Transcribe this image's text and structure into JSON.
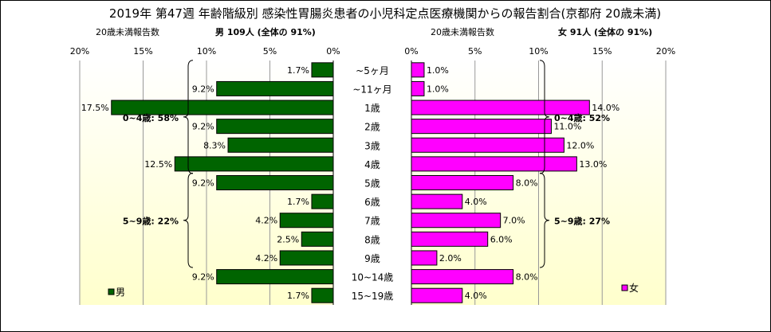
{
  "title": "2019年 第47週 年齢階級別 感染性胃腸炎患者の小児科定点医療機関からの報告割合(京都府 20歳未満)",
  "colors": {
    "male": "#006400",
    "female": "#ff00ff",
    "plot_bg_bottom": "#ffffcc"
  },
  "chart_data": [
    {
      "type": "bar",
      "orientation": "horizontal",
      "direction": "right-to-left",
      "caption": "20歳未満報告数",
      "header": "男 109人 (全体の 91%)",
      "categories": [
        "~5ヶ月",
        "~11ヶ月",
        "1歳",
        "2歳",
        "3歳",
        "4歳",
        "5歳",
        "6歳",
        "7歳",
        "8歳",
        "9歳",
        "10~14歳",
        "15~19歳"
      ],
      "series": [
        {
          "name": "男",
          "values": [
            1.7,
            9.2,
            17.5,
            9.2,
            8.3,
            12.5,
            9.2,
            1.7,
            4.2,
            2.5,
            4.2,
            9.2,
            1.7
          ],
          "labels": [
            "1.7%",
            "9.2%",
            "17.5%",
            "9.2%",
            "8.3%",
            "12.5%",
            "9.2%",
            "1.7%",
            "4.2%",
            "2.5%",
            "4.2%",
            "9.2%",
            "1.7%"
          ]
        }
      ],
      "xlim": [
        0,
        20
      ],
      "xticks": [
        "20%",
        "15%",
        "10%",
        "5%",
        "0%"
      ],
      "grid": true,
      "legend": "bottom-left",
      "annotations": [
        {
          "text": "0~4歳: 58%",
          "from_index": 0,
          "to_index": 5
        },
        {
          "text": "5~9歳: 22%",
          "from_index": 6,
          "to_index": 10
        }
      ]
    },
    {
      "type": "bar",
      "orientation": "horizontal",
      "direction": "left-to-right",
      "caption": "20歳未満報告数",
      "header": "女 91人 (全体の 91%)",
      "categories": [
        "~5ヶ月",
        "~11ヶ月",
        "1歳",
        "2歳",
        "3歳",
        "4歳",
        "5歳",
        "6歳",
        "7歳",
        "8歳",
        "9歳",
        "10~14歳",
        "15~19歳"
      ],
      "series": [
        {
          "name": "女",
          "values": [
            1.0,
            1.0,
            14.0,
            11.0,
            12.0,
            13.0,
            8.0,
            4.0,
            7.0,
            6.0,
            2.0,
            8.0,
            4.0
          ],
          "labels": [
            "1.0%",
            "1.0%",
            "14.0%",
            "11.0%",
            "12.0%",
            "13.0%",
            "8.0%",
            "4.0%",
            "7.0%",
            "6.0%",
            "2.0%",
            "8.0%",
            "4.0%"
          ]
        }
      ],
      "xlim": [
        0,
        20
      ],
      "xticks": [
        "0%",
        "5%",
        "10%",
        "15%",
        "20%"
      ],
      "grid": true,
      "legend": "bottom-right",
      "annotations": [
        {
          "text": "0~4歳: 52%",
          "from_index": 0,
          "to_index": 5
        },
        {
          "text": "5~9歳: 27%",
          "from_index": 6,
          "to_index": 10
        }
      ]
    }
  ]
}
